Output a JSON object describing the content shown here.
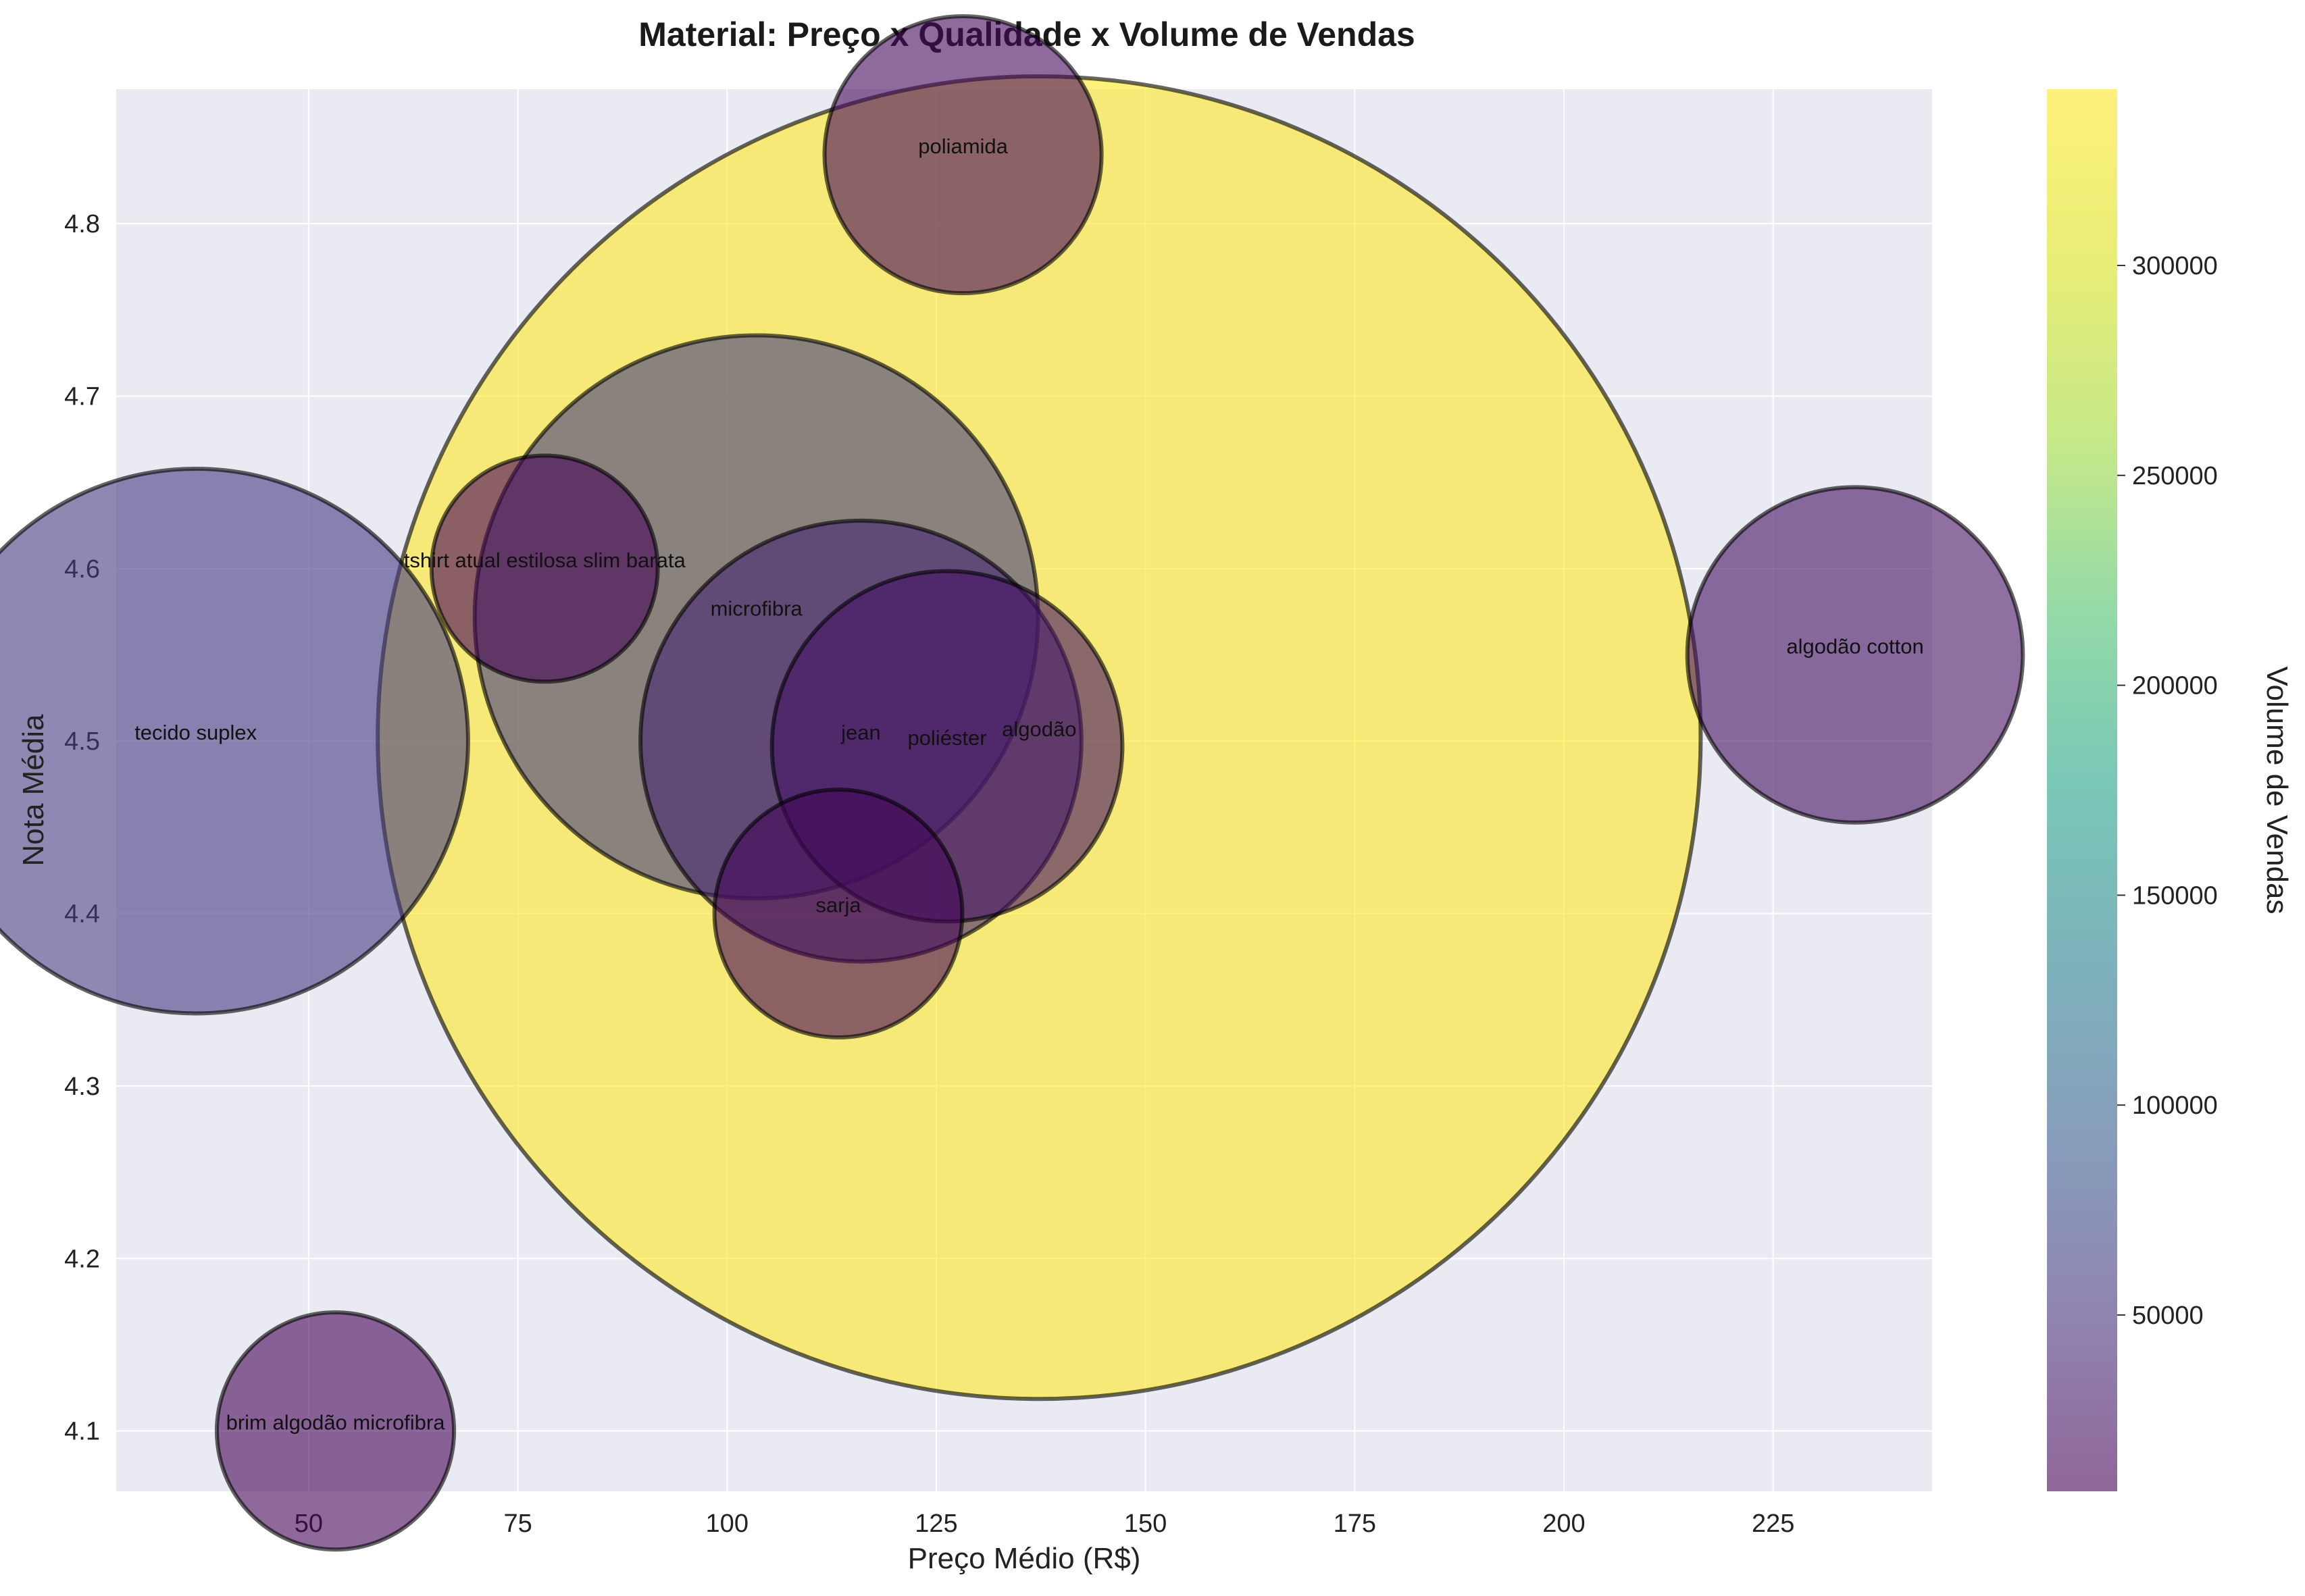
{
  "chart_data": {
    "type": "scatter",
    "title": "Material: Preço x Qualidade x Volume de Vendas",
    "xlabel": "Preço Médio (R$)",
    "ylabel": "Nota Média",
    "xlim": [
      27,
      244
    ],
    "ylim": [
      4.065,
      4.878
    ],
    "xticks": [
      50,
      75,
      100,
      125,
      150,
      175,
      200,
      225
    ],
    "yticks": [
      4.1,
      4.2,
      4.3,
      4.4,
      4.5,
      4.6,
      4.7,
      4.8
    ],
    "grid": true,
    "colorbar": {
      "label": "Volume de Vendas",
      "colormap": "viridis",
      "alpha": 0.6,
      "range": [
        8000,
        342000
      ],
      "ticks": [
        50000,
        100000,
        150000,
        200000,
        250000,
        300000
      ]
    },
    "points": [
      {
        "label": "poliamida",
        "x": 128.2,
        "y": 4.84,
        "volume": 15000
      },
      {
        "label": "tshirt atual estilosa slim barata",
        "x": 78.2,
        "y": 4.6,
        "volume": 10000
      },
      {
        "label": "microfibra",
        "x": 103.5,
        "y": 4.572,
        "volume": 62000
      },
      {
        "label": "algodão cotton",
        "x": 234.8,
        "y": 4.55,
        "volume": 22000
      },
      {
        "label": "tecido suplex",
        "x": 36.5,
        "y": 4.5,
        "volume": 58000
      },
      {
        "label": "jean",
        "x": 116.0,
        "y": 4.5,
        "volume": 38000
      },
      {
        "label": "poliéster",
        "x": 126.3,
        "y": 4.497,
        "volume": 24000
      },
      {
        "label": "algodão",
        "x": 137.3,
        "y": 4.502,
        "volume": 342000
      },
      {
        "label": "sarja",
        "x": 113.3,
        "y": 4.4,
        "volume": 12000
      },
      {
        "label": "brim algodão microfibra",
        "x": 53.2,
        "y": 4.1,
        "volume": 11000
      }
    ]
  }
}
